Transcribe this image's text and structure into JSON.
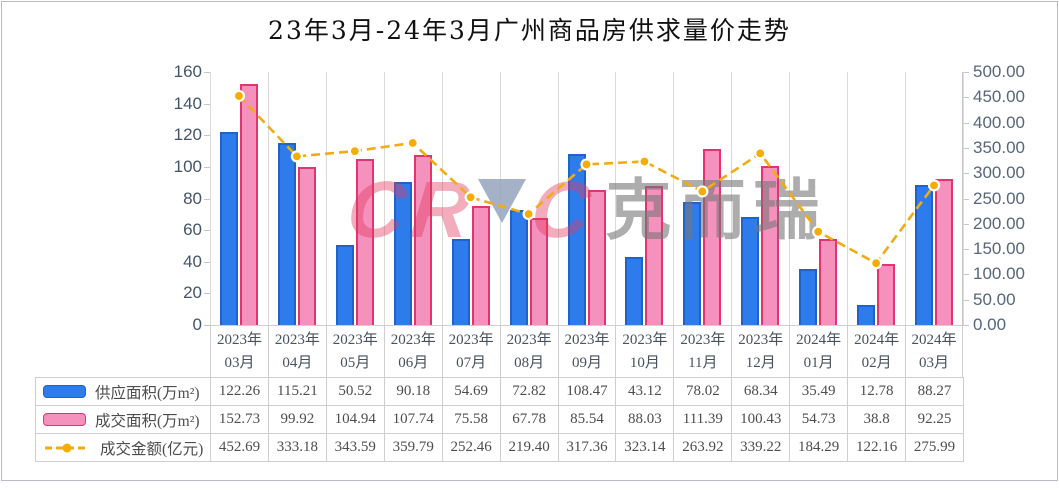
{
  "window": {
    "background": "#ffffff",
    "frame_color": "#b9bdc3"
  },
  "chart_data": {
    "type": "bar+line combo",
    "title": "23年3月-24年3月广州商品房供求量价走势",
    "categories": [
      "2023年03月",
      "2023年04月",
      "2023年05月",
      "2023年06月",
      "2023年07月",
      "2023年08月",
      "2023年09月",
      "2023年10月",
      "2023年11月",
      "2023年12月",
      "2024年01月",
      "2024年02月",
      "2024年03月"
    ],
    "series": [
      {
        "name": "供应面积(万m²)",
        "type": "bar",
        "axis": "left",
        "fill": "#2e7cec",
        "border": "#1f63c9",
        "values": [
          "122.26",
          "115.21",
          "50.52",
          "90.18",
          "54.69",
          "72.82",
          "108.47",
          "43.12",
          "78.02",
          "68.34",
          "35.49",
          "12.78",
          "88.27"
        ]
      },
      {
        "name": "成交面积(万m²)",
        "type": "bar",
        "axis": "left",
        "fill": "#f491bd",
        "border": "#e2346f",
        "values": [
          "152.73",
          "99.92",
          "104.94",
          "107.74",
          "75.58",
          "67.78",
          "85.54",
          "88.03",
          "111.39",
          "100.43",
          "54.73",
          "38.8",
          "92.25"
        ]
      },
      {
        "name": "成交金额(亿元)",
        "type": "line",
        "axis": "right",
        "color": "#f0ac12",
        "marker_fill": "#f5ae00",
        "marker_ring": "#ffffff",
        "style": "dashed",
        "values": [
          "452.69",
          "333.18",
          "343.59",
          "359.79",
          "252.46",
          "219.40",
          "317.36",
          "323.14",
          "263.92",
          "339.22",
          "184.29",
          "122.16",
          "275.99"
        ]
      }
    ],
    "left_axis": {
      "min": 0,
      "max": 160,
      "step": 20,
      "decimals": 0
    },
    "right_axis": {
      "min": 0,
      "max": 500,
      "step": 50,
      "decimals": 2
    },
    "grid": "vertical category separators only, no horizontal gridlines",
    "legend_position": "table rows at left of data table below chart"
  },
  "watermark": {
    "cr": "CR",
    "c": "C",
    "cjk": "克而瑞",
    "triangle_icon": "inverted-triangle"
  }
}
